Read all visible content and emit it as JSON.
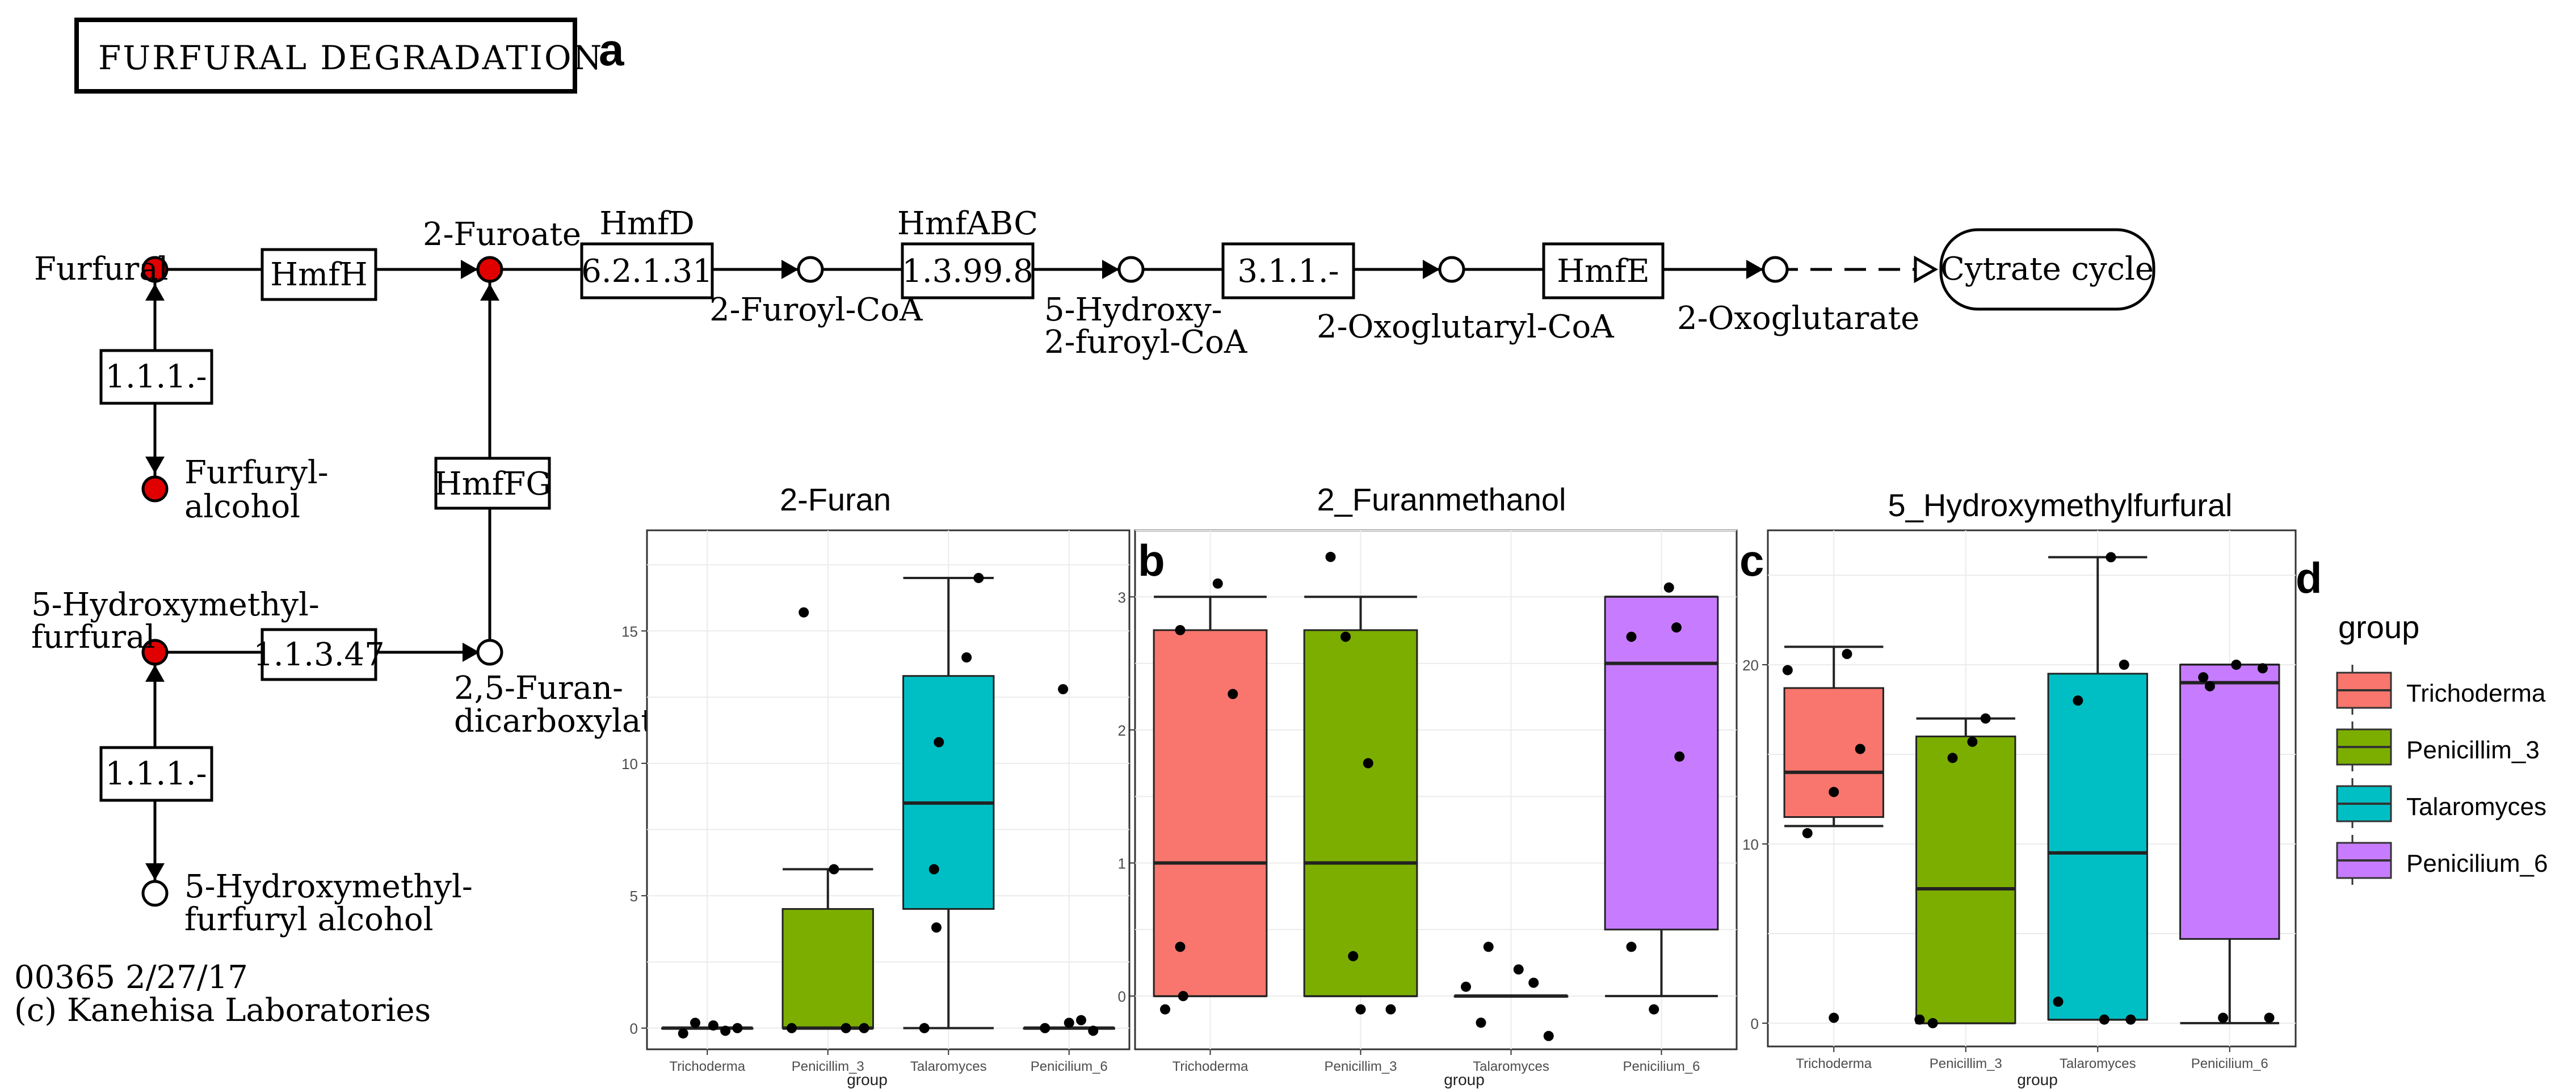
{
  "pathway": {
    "title": "FURFURAL DEGRADATION",
    "panel_a": "a",
    "compounds": {
      "furfural": "Furfural",
      "furoate": "2-Furoate",
      "furoyl_coa": "2-Furoyl-CoA",
      "hydroxy_furoyl_coa_1": "5-Hydroxy-",
      "hydroxy_furoyl_coa_2": "2-furoyl-CoA",
      "oxoglutaryl_coa": "2-Oxoglutaryl-CoA",
      "oxoglutarate": "2-Oxoglutarate",
      "cytrate_cycle": "Cytrate cycle",
      "furfuryl_alcohol_1": "Furfuryl-",
      "furfuryl_alcohol_2": "alcohol",
      "hmf_1": "5-Hydroxymethyl-",
      "hmf_2": "furfural",
      "fdca_1": "2,5-Furan-",
      "fdca_2": "dicarboxylate",
      "hmf_alcohol_1": "5-Hydroxymethyl-",
      "hmf_alcohol_2": "furfuryl alcohol"
    },
    "enzymes": {
      "hmfh": "HmfH",
      "hmfd_name": "HmfD",
      "hmfd_ec": "6.2.1.31",
      "hmfabc_name": "HmfABC",
      "hmfabc_ec": "1.3.99.8",
      "ec_3_1_1": "3.1.1.-",
      "hmfe": "HmfE",
      "ec_1_1_1_top": "1.1.1.-",
      "hmffg": "HmfFG",
      "ec_1_1_3_47": "1.1.3.47",
      "ec_1_1_1_bottom": "1.1.1.-"
    },
    "footer_line1": "00365 2/27/17",
    "footer_line2": "(c) Kanehisa Laboratories",
    "colors": {
      "detected": "#e00000",
      "undetected": "#ffffff"
    }
  },
  "chart_data": [
    {
      "type": "box",
      "title": "2-Furan",
      "panel_label": "",
      "xlabel": "group",
      "ylabel": "",
      "categories": [
        "Trichoderma",
        "Penicillim_3",
        "Talaromyces",
        "Penicilium_6"
      ],
      "ylim": [
        -0.8,
        18.8
      ],
      "yticks": [
        0,
        5,
        10,
        15
      ],
      "boxes": [
        {
          "q1": 0,
          "median": 0,
          "q3": 0,
          "whisker_low": 0,
          "whisker_high": 0
        },
        {
          "q1": 0,
          "median": 0,
          "q3": 4.5,
          "whisker_low": 0,
          "whisker_high": 6
        },
        {
          "q1": 4.5,
          "median": 8.5,
          "q3": 13.3,
          "whisker_low": 0,
          "whisker_high": 17
        },
        {
          "q1": 0,
          "median": 0,
          "q3": 0,
          "whisker_low": 0,
          "whisker_high": 0
        }
      ],
      "points": [
        [
          [
            -0.2,
            -0.2
          ],
          [
            -0.1,
            0.2
          ],
          [
            0.05,
            0.1
          ],
          [
            0.15,
            -0.1
          ],
          [
            0.25,
            0.0
          ]
        ],
        [
          [
            -0.3,
            0.0
          ],
          [
            -0.2,
            15.7
          ],
          [
            0.05,
            6.0
          ],
          [
            0.15,
            0.0
          ],
          [
            0.3,
            0.0
          ]
        ],
        [
          [
            -0.2,
            0.0
          ],
          [
            -0.1,
            3.8
          ],
          [
            -0.12,
            6.0
          ],
          [
            -0.08,
            10.8
          ],
          [
            0.15,
            14.0
          ],
          [
            0.25,
            17.0
          ]
        ],
        [
          [
            -0.2,
            0.0
          ],
          [
            -0.05,
            12.8
          ],
          [
            0.0,
            0.2
          ],
          [
            0.1,
            0.3
          ],
          [
            0.2,
            -0.1
          ]
        ]
      ],
      "fills": [
        "#F8766D",
        "#7CAE00",
        "#00BFC4",
        "#C77CFF"
      ]
    },
    {
      "type": "box",
      "title": "2_Furanmethanol",
      "panel_label": "b",
      "xlabel": "group",
      "ylabel": "",
      "categories": [
        "Trichoderma",
        "Penicillim_3",
        "Talaromyces",
        "Penicilium_6"
      ],
      "ylim": [
        -0.4,
        3.5
      ],
      "yticks": [
        0,
        1,
        2,
        3
      ],
      "boxes": [
        {
          "q1": 0,
          "median": 1,
          "q3": 2.75,
          "whisker_low": 0,
          "whisker_high": 3.0
        },
        {
          "q1": 0,
          "median": 1,
          "q3": 2.75,
          "whisker_low": 0,
          "whisker_high": 3.0
        },
        {
          "q1": 0,
          "median": 0,
          "q3": 0,
          "whisker_low": 0,
          "whisker_high": 0
        },
        {
          "q1": 0.5,
          "median": 2.5,
          "q3": 3.0,
          "whisker_low": 0,
          "whisker_high": 3.0
        }
      ],
      "points": [
        [
          [
            -0.3,
            -0.1
          ],
          [
            -0.2,
            2.75
          ],
          [
            -0.2,
            0.37
          ],
          [
            -0.18,
            0.0
          ],
          [
            0.05,
            3.1
          ],
          [
            0.15,
            2.27
          ]
        ],
        [
          [
            -0.2,
            3.3
          ],
          [
            -0.1,
            2.7
          ],
          [
            -0.05,
            0.3
          ],
          [
            0.0,
            -0.1
          ],
          [
            0.05,
            1.75
          ],
          [
            0.2,
            -0.1
          ]
        ],
        [
          [
            -0.3,
            0.07
          ],
          [
            -0.2,
            -0.2
          ],
          [
            -0.15,
            0.37
          ],
          [
            0.05,
            0.2
          ],
          [
            0.15,
            0.1
          ],
          [
            0.25,
            -0.3
          ]
        ],
        [
          [
            -0.2,
            2.7
          ],
          [
            -0.2,
            0.37
          ],
          [
            -0.05,
            -0.1
          ],
          [
            0.05,
            3.07
          ],
          [
            0.1,
            2.77
          ],
          [
            0.12,
            1.8
          ]
        ]
      ],
      "fills": [
        "#F8766D",
        "#7CAE00",
        "#00BFC4",
        "#C77CFF"
      ]
    },
    {
      "type": "box",
      "title": "5_Hydroxymethylfurfural",
      "panel_label": "c",
      "xlabel": "group",
      "ylabel": "",
      "categories": [
        "Trichoderma",
        "Penicillim_3",
        "Talaromyces",
        "Penicilium_6"
      ],
      "ylim": [
        -1.3,
        27.5
      ],
      "yticks": [
        0,
        10,
        20
      ],
      "boxes": [
        {
          "q1": 11.5,
          "median": 14,
          "q3": 18.7,
          "whisker_low": 11,
          "whisker_high": 21
        },
        {
          "q1": 0,
          "median": 7.5,
          "q3": 16,
          "whisker_low": 0,
          "whisker_high": 17
        },
        {
          "q1": 0.2,
          "median": 9.5,
          "q3": 19.5,
          "whisker_low": 0.2,
          "whisker_high": 26
        },
        {
          "q1": 4.7,
          "median": 19,
          "q3": 20,
          "whisker_low": 0,
          "whisker_high": 20
        }
      ],
      "points": [
        [
          [
            -0.35,
            19.7
          ],
          [
            -0.2,
            10.6
          ],
          [
            0.0,
            12.9
          ],
          [
            0.0,
            0.3
          ],
          [
            0.1,
            20.6
          ],
          [
            0.2,
            15.3
          ]
        ],
        [
          [
            -0.35,
            0.2
          ],
          [
            -0.25,
            0.0
          ],
          [
            -0.1,
            14.8
          ],
          [
            0.05,
            15.7
          ],
          [
            0.15,
            17.0
          ]
        ],
        [
          [
            -0.3,
            1.2
          ],
          [
            -0.15,
            18.0
          ],
          [
            0.05,
            0.2
          ],
          [
            0.1,
            26.0
          ],
          [
            0.2,
            20.0
          ],
          [
            0.25,
            0.2
          ]
        ],
        [
          [
            -0.2,
            19.3
          ],
          [
            -0.15,
            18.8
          ],
          [
            -0.05,
            0.3
          ],
          [
            0.05,
            20.0
          ],
          [
            0.25,
            19.8
          ],
          [
            0.3,
            0.3
          ]
        ]
      ],
      "fills": [
        "#F8766D",
        "#7CAE00",
        "#00BFC4",
        "#C77CFF"
      ]
    }
  ],
  "legend": {
    "panel_label": "d",
    "title": "group",
    "items": [
      {
        "label": "Trichoderma",
        "color": "#F8766D"
      },
      {
        "label": "Penicillim_3",
        "color": "#7CAE00"
      },
      {
        "label": "Talaromyces",
        "color": "#00BFC4"
      },
      {
        "label": "Penicilium_6",
        "color": "#C77CFF"
      }
    ]
  }
}
